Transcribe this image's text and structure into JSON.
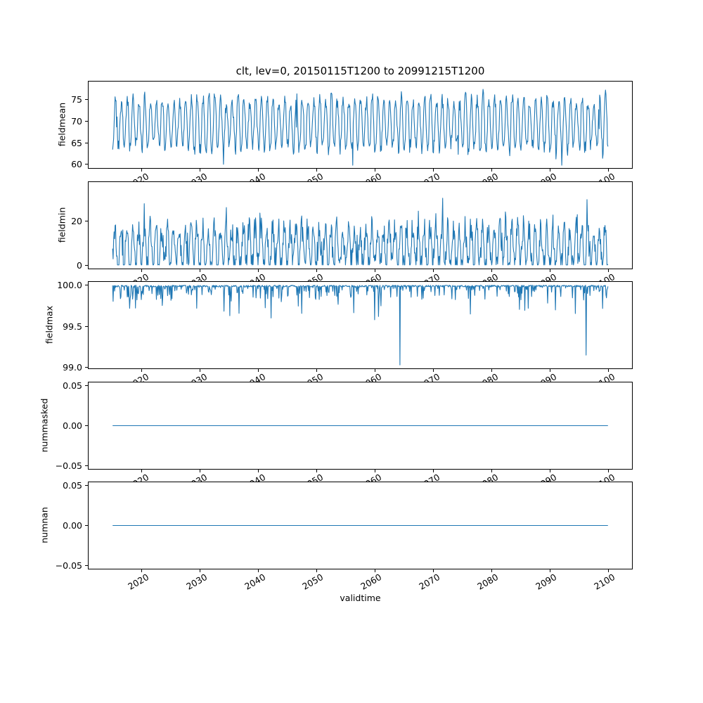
{
  "figure": {
    "title": "clt, lev=0, 20150115T1200 to 20991215T1200",
    "xlabel": "validtime",
    "background": "#ffffff",
    "axes_edge_color": "#000000",
    "line_color": "#1f77b4",
    "tick_rotation_deg": 30
  },
  "x_axis": {
    "label": "validtime",
    "xlim": [
      2010.7958,
      2104.2042
    ],
    "xtick_vals": [
      2020,
      2030,
      2040,
      2050,
      2060,
      2070,
      2080,
      2090,
      2100
    ],
    "xtick_labels": [
      "2020",
      "2030",
      "2040",
      "2050",
      "2060",
      "2070",
      "2080",
      "2090",
      "2100"
    ]
  },
  "chart_data": [
    {
      "type": "line",
      "ylabel": "fieldmean",
      "x_start": 2015.0417,
      "x_end": 2099.9583,
      "points_per_year": 12,
      "xlim": [
        2010.7958,
        2104.2042
      ],
      "ylim": [
        59.0,
        79.3
      ],
      "ytick_vals": [
        60,
        65,
        70,
        75
      ],
      "ytick_labels": [
        "60",
        "65",
        "70",
        "75"
      ],
      "generator": {
        "kind": "seasonal",
        "seed": 42,
        "mean": 69.4,
        "amp_base": 4.4,
        "amp_rand": 2.4,
        "noise": 1.5,
        "phase": 0.3,
        "shape_exp": 0.8,
        "dip_prob": 0.012,
        "dip_amp": 4,
        "clip_min": 59.8,
        "clip_max": 77.6
      }
    },
    {
      "type": "line",
      "ylabel": "fieldmin",
      "x_start": 2015.0417,
      "x_end": 2099.9583,
      "points_per_year": 12,
      "xlim": [
        2010.7958,
        2104.2042
      ],
      "ylim": [
        -1.9,
        37.9
      ],
      "ytick_vals": [
        0,
        20
      ],
      "ytick_labels": [
        "0",
        "20"
      ],
      "generator": {
        "kind": "seasonal_spiky",
        "seed": 77,
        "base": 8,
        "amp": 9,
        "noise": 11,
        "phase": 0.22,
        "spike_prob": 0.05,
        "spike_add": 12,
        "clip_min": 0.05,
        "clip_max": 36.5
      }
    },
    {
      "type": "line",
      "ylabel": "fieldmax",
      "x_start": 2015.0417,
      "x_end": 2099.9583,
      "points_per_year": 12,
      "xlim": [
        2010.7958,
        2104.2042
      ],
      "ylim": [
        98.98,
        100.05
      ],
      "ytick_vals": [
        99.0,
        99.5,
        100.0
      ],
      "ytick_labels": [
        "99.0",
        "99.5",
        "100.0"
      ],
      "generator": {
        "kind": "baseline_dips",
        "seed": 7,
        "baseline": 100.0,
        "small_dip": 0.02,
        "p_small": 0.55,
        "p_mid": 0.37,
        "mid_dip_max": 0.18,
        "big_dip_max": 0.4,
        "forced_dips": [
          {
            "x": 2029.5,
            "value": 99.72
          },
          {
            "x": 2044.0,
            "value": 99.8
          },
          {
            "x": 2060.0,
            "value": 99.58
          },
          {
            "x": 2060.6,
            "value": 99.62
          },
          {
            "x": 2064.3,
            "value": 99.03
          },
          {
            "x": 2076.4,
            "value": 99.65
          },
          {
            "x": 2086.3,
            "value": 99.72
          },
          {
            "x": 2091.0,
            "value": 99.7
          },
          {
            "x": 2096.2,
            "value": 99.15
          }
        ]
      }
    },
    {
      "type": "line",
      "ylabel": "nummasked",
      "x_start": 2015.0417,
      "x_end": 2099.9583,
      "points_per_year": 12,
      "xlim": [
        2010.7958,
        2104.2042
      ],
      "ylim": [
        -0.055,
        0.055
      ],
      "ytick_vals": [
        -0.05,
        0,
        0.05
      ],
      "ytick_labels": [
        "−0.05",
        "0.00",
        "0.05"
      ],
      "generator": {
        "kind": "constant",
        "seed": 1,
        "value": 0
      }
    },
    {
      "type": "line",
      "ylabel": "numnan",
      "x_start": 2015.0417,
      "x_end": 2099.9583,
      "points_per_year": 12,
      "xlim": [
        2010.7958,
        2104.2042
      ],
      "ylim": [
        -0.055,
        0.055
      ],
      "ytick_vals": [
        -0.05,
        0,
        0.05
      ],
      "ytick_labels": [
        "−0.05",
        "0.00",
        "0.05"
      ],
      "generator": {
        "kind": "constant",
        "seed": 2,
        "value": 0
      }
    }
  ]
}
